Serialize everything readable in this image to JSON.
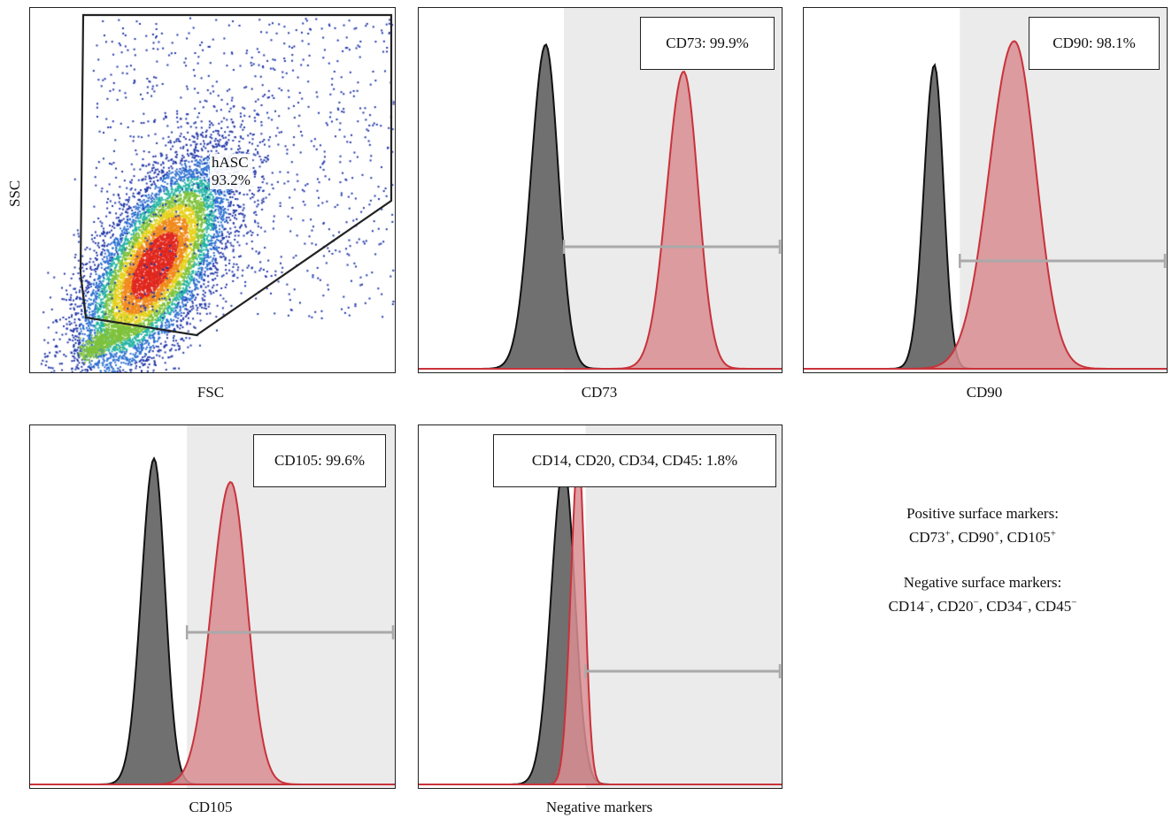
{
  "colors": {
    "isotype_fill": "#707070",
    "isotype_line": "#111111",
    "stained_fill": "#d88d92",
    "stained_line": "#c9323a",
    "gate_shade": "#ebebeb",
    "gate_bar": "#a9a9a9"
  },
  "scatter": {
    "xlabel": "FSC",
    "ylabel": "SSC",
    "gate_name": "hASC",
    "gate_pct": "93.2%"
  },
  "panels": [
    {
      "id": "cd73",
      "xlabel": "CD73",
      "callout": "CD73: 99.9%"
    },
    {
      "id": "cd90",
      "xlabel": "CD90",
      "callout": "CD90: 98.1%"
    },
    {
      "id": "cd105",
      "xlabel": "CD105",
      "callout": "CD105: 99.6%"
    },
    {
      "id": "neg",
      "xlabel": "Negative markers",
      "callout": "CD14, CD20, CD34, CD45: 1.8%"
    }
  ],
  "notes": {
    "positive_title": "Positive surface markers:",
    "positive_items": [
      {
        "name": "CD73",
        "sign": "+"
      },
      {
        "name": "CD90",
        "sign": "+"
      },
      {
        "name": "CD105",
        "sign": "+"
      }
    ],
    "negative_title": "Negative surface markers:",
    "negative_items": [
      {
        "name": "CD14",
        "sign": "−"
      },
      {
        "name": "CD20",
        "sign": "−"
      },
      {
        "name": "CD34",
        "sign": "−"
      },
      {
        "name": "CD45",
        "sign": "−"
      }
    ]
  },
  "chart_data": [
    {
      "type": "scatter",
      "xlabel": "FSC",
      "ylabel": "SSC",
      "gate": {
        "name": "hASC",
        "percent": 93.2
      },
      "xlim": [
        0,
        1
      ],
      "ylim": [
        0,
        1
      ],
      "density_peak": {
        "x": 0.33,
        "y": 0.27
      }
    },
    {
      "type": "area",
      "xlabel": "CD73",
      "percent_positive": 99.9,
      "xlim": [
        0,
        1
      ],
      "ylim": [
        0,
        1
      ],
      "positive_gate": [
        0.4,
        1.0
      ],
      "series": [
        {
          "role": "isotype",
          "center": 0.35,
          "width": 0.035,
          "peak": 0.96
        },
        {
          "role": "stained",
          "center": 0.73,
          "width": 0.04,
          "peak": 0.88
        }
      ]
    },
    {
      "type": "area",
      "xlabel": "CD90",
      "percent_positive": 98.1,
      "xlim": [
        0,
        1
      ],
      "ylim": [
        0,
        1
      ],
      "positive_gate": [
        0.43,
        1.0
      ],
      "series": [
        {
          "role": "isotype",
          "center": 0.36,
          "width": 0.025,
          "peak": 0.9
        },
        {
          "role": "stained",
          "center": 0.58,
          "width": 0.06,
          "peak": 0.97
        }
      ]
    },
    {
      "type": "area",
      "xlabel": "CD105",
      "percent_positive": 99.6,
      "xlim": [
        0,
        1
      ],
      "ylim": [
        0,
        1
      ],
      "positive_gate": [
        0.43,
        1.0
      ],
      "series": [
        {
          "role": "isotype",
          "center": 0.34,
          "width": 0.03,
          "peak": 0.97
        },
        {
          "role": "stained",
          "center": 0.55,
          "width": 0.045,
          "peak": 0.9
        }
      ]
    },
    {
      "type": "area",
      "xlabel": "Negative markers",
      "percent_positive": 1.8,
      "xlim": [
        0,
        1
      ],
      "ylim": [
        0,
        1
      ],
      "positive_gate": [
        0.46,
        1.0
      ],
      "series": [
        {
          "role": "isotype",
          "center": 0.4,
          "width": 0.03,
          "peak": 0.95
        },
        {
          "role": "stained",
          "center": 0.44,
          "width": 0.018,
          "peak": 0.98
        }
      ]
    }
  ]
}
